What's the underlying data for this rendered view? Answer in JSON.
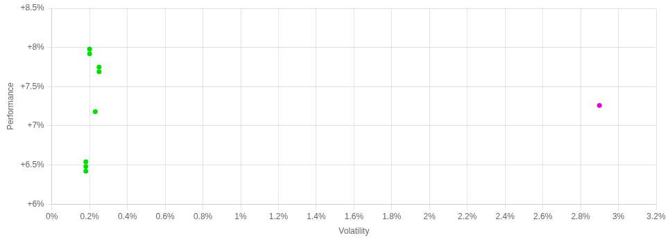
{
  "chart_data": {
    "type": "scatter",
    "x_label": "Volatility",
    "y_label": "Performance",
    "series": [
      {
        "color": "#00dd00",
        "x": [
          0.002,
          0.002,
          0.0025,
          0.0025,
          0.0023,
          0.0018,
          0.0018,
          0.0018
        ],
        "values": [
          0.0798,
          0.0792,
          0.0775,
          0.0769,
          0.0718,
          0.0654,
          0.0648,
          0.0642
        ]
      },
      {
        "color": "#dd00dd",
        "x": [
          0.029
        ],
        "values": [
          0.0726
        ]
      }
    ],
    "xlim": [
      0.0,
      0.032
    ],
    "ylim": [
      0.06,
      0.085
    ],
    "xticks": [
      {
        "value": 0.0,
        "label": "0%"
      },
      {
        "value": 0.002,
        "label": "0.2%"
      },
      {
        "value": 0.004,
        "label": "0.4%"
      },
      {
        "value": 0.006,
        "label": "0.6%"
      },
      {
        "value": 0.008,
        "label": "0.8%"
      },
      {
        "value": 0.01,
        "label": "1%"
      },
      {
        "value": 0.012,
        "label": "1.2%"
      },
      {
        "value": 0.014,
        "label": "1.4%"
      },
      {
        "value": 0.016,
        "label": "1.6%"
      },
      {
        "value": 0.018,
        "label": "1.8%"
      },
      {
        "value": 0.02,
        "label": "2%"
      },
      {
        "value": 0.022,
        "label": "2.2%"
      },
      {
        "value": 0.024,
        "label": "2.4%"
      },
      {
        "value": 0.026,
        "label": "2.6%"
      },
      {
        "value": 0.028,
        "label": "2.8%"
      },
      {
        "value": 0.03,
        "label": "3%"
      },
      {
        "value": 0.032,
        "label": "3.2%"
      }
    ],
    "yticks": [
      {
        "value": 0.06,
        "label": "+6%"
      },
      {
        "value": 0.065,
        "label": "+6.5%"
      },
      {
        "value": 0.07,
        "label": "+7%"
      },
      {
        "value": 0.075,
        "label": "+7.5%"
      },
      {
        "value": 0.08,
        "label": "+8%"
      },
      {
        "value": 0.085,
        "label": "+8.5%"
      }
    ],
    "grid": true
  }
}
